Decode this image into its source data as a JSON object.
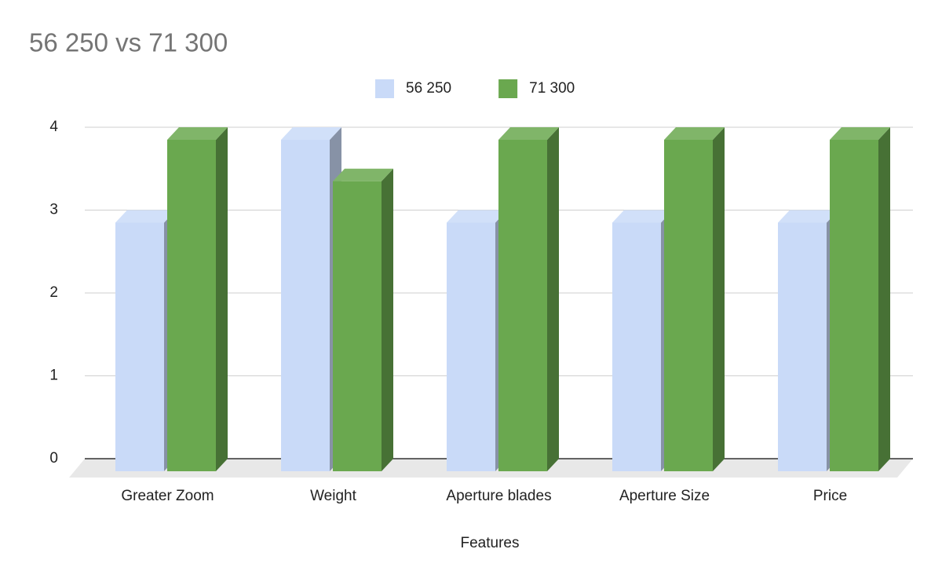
{
  "chart_data": {
    "type": "bar3d",
    "title": "56 250 vs 71 300",
    "x_label": "Features",
    "categories": [
      "Greater Zoom",
      "Weight",
      "Aperture blades",
      "Aperture Size",
      "Price"
    ],
    "series": [
      {
        "name": "56 250",
        "color": "#c9daf8",
        "values": [
          3,
          4,
          3,
          3,
          3
        ]
      },
      {
        "name": "71 300",
        "color": "#6aa84f",
        "values": [
          4,
          3.5,
          4,
          4,
          4
        ]
      }
    ],
    "ylim": [
      0,
      4
    ],
    "yticks": [
      0,
      1,
      2,
      3,
      4
    ],
    "grid": true,
    "legend": "top"
  }
}
